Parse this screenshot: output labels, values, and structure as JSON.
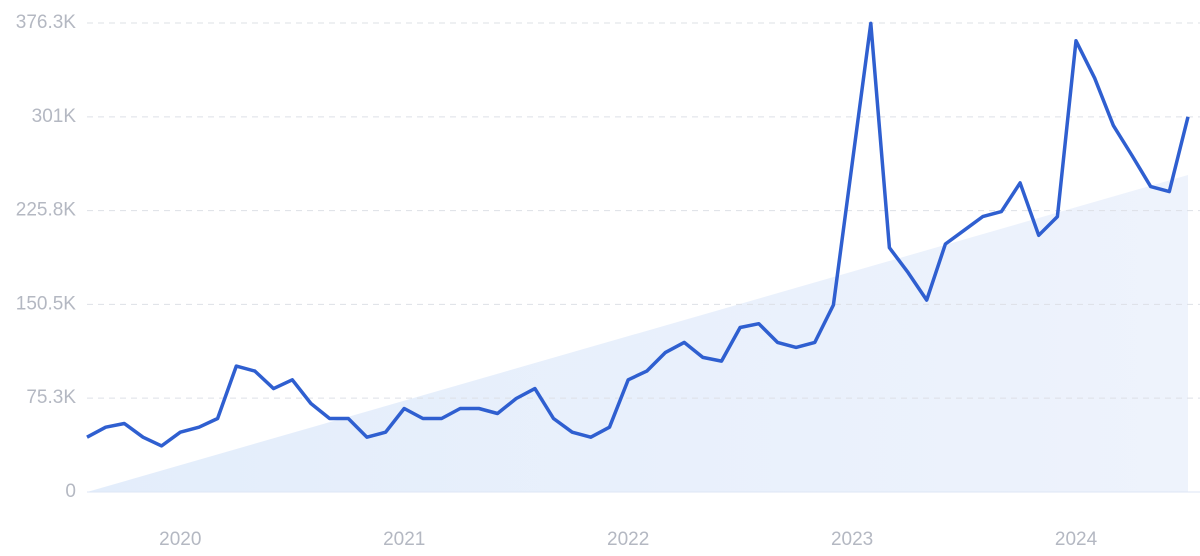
{
  "chart_data": {
    "type": "line",
    "categories": [
      null,
      null,
      null,
      null,
      null,
      "2020",
      null,
      null,
      null,
      null,
      null,
      null,
      null,
      null,
      null,
      null,
      null,
      "2021",
      null,
      null,
      null,
      null,
      null,
      null,
      null,
      null,
      null,
      null,
      null,
      "2022",
      null,
      null,
      null,
      null,
      null,
      null,
      null,
      null,
      null,
      null,
      null,
      "2023",
      null,
      null,
      null,
      null,
      null,
      null,
      null,
      null,
      null,
      null,
      null,
      "2024",
      null,
      null,
      null,
      null,
      null,
      null
    ],
    "series": [
      {
        "color": "#2f5fd0",
        "values": [
          44000,
          52000,
          55000,
          44000,
          37000,
          48000,
          52000,
          59000,
          101000,
          97000,
          83000,
          90000,
          71000,
          59000,
          59000,
          44000,
          48000,
          67000,
          59000,
          59000,
          67000,
          67000,
          63000,
          75000,
          83000,
          59000,
          48000,
          44000,
          52000,
          90000,
          97000,
          112000,
          120000,
          108000,
          105000,
          132000,
          135000,
          120000,
          116000,
          120000,
          150000,
          263000,
          376000,
          196000,
          176000,
          154000,
          199000,
          210000,
          221000,
          225000,
          248000,
          206000,
          221000,
          362000,
          332000,
          294000,
          270000,
          245000,
          241000,
          301000
        ]
      }
    ],
    "ylim": [
      0,
      376300
    ],
    "yticks": [
      0,
      {
        "value": 75300,
        "label": "75.3K"
      },
      {
        "value": 150500,
        "label": "150.5K"
      },
      {
        "value": 225800,
        "label": "225.8K"
      },
      {
        "value": 301000,
        "label": "301K"
      },
      {
        "value": 376300,
        "label": "376.3K"
      }
    ],
    "grid": true
  }
}
